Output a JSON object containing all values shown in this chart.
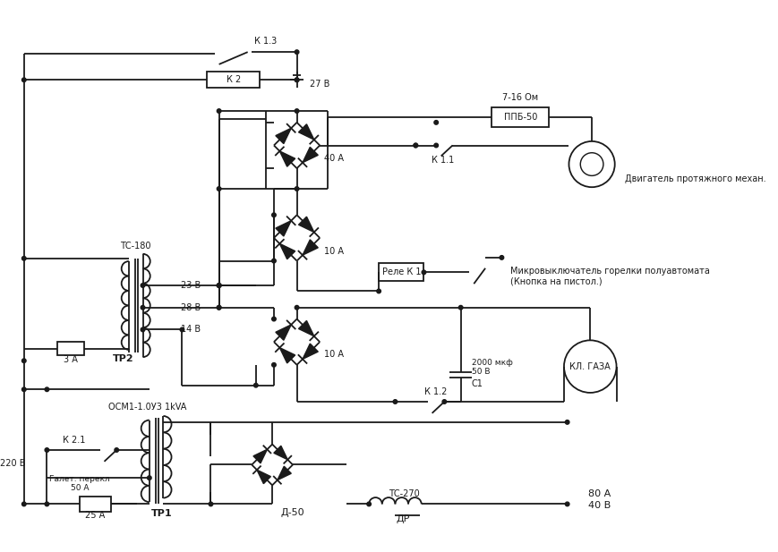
{
  "bg_color": "#ffffff",
  "line_color": "#1a1a1a",
  "lw": 1.3,
  "labels": {
    "220V": "220 В",
    "25A": "25 А",
    "TR1": "ТР1",
    "galette": "Галет. перекл\n50 А",
    "K21": "К 2.1",
    "OSM": "ОСМ1-1.0У3 1kVA",
    "D50": "Д-50",
    "DR": "ДР",
    "TC270": "ТС-270",
    "40V": "40 В",
    "80A": "80 А",
    "3A": "3 А",
    "TR2": "ТР2",
    "14V": "14 В",
    "28V": "28 В",
    "23V": "23 В",
    "TC180": "ТС-180",
    "10A_top": "10 А",
    "K12": "К 1.2",
    "C1": "С1",
    "2000mf": "2000 мкф\n50 В",
    "KL_GAZA": "КЛ. ГАЗА",
    "10A_mid": "10 А",
    "relay_k1": "Реле К 1",
    "micro_sw": "Микровыключатель горелки полуавтомата\n(Кнопка на пистол.)",
    "40A": "40 А",
    "K11": "К 1.1",
    "engine": "Двигатель протяжного механ.",
    "PPB50": "ППБ-50",
    "7_16_ohm": "7-16 Ом",
    "K2": "К 2",
    "27V": "27 В",
    "K13": "К 1.3"
  }
}
